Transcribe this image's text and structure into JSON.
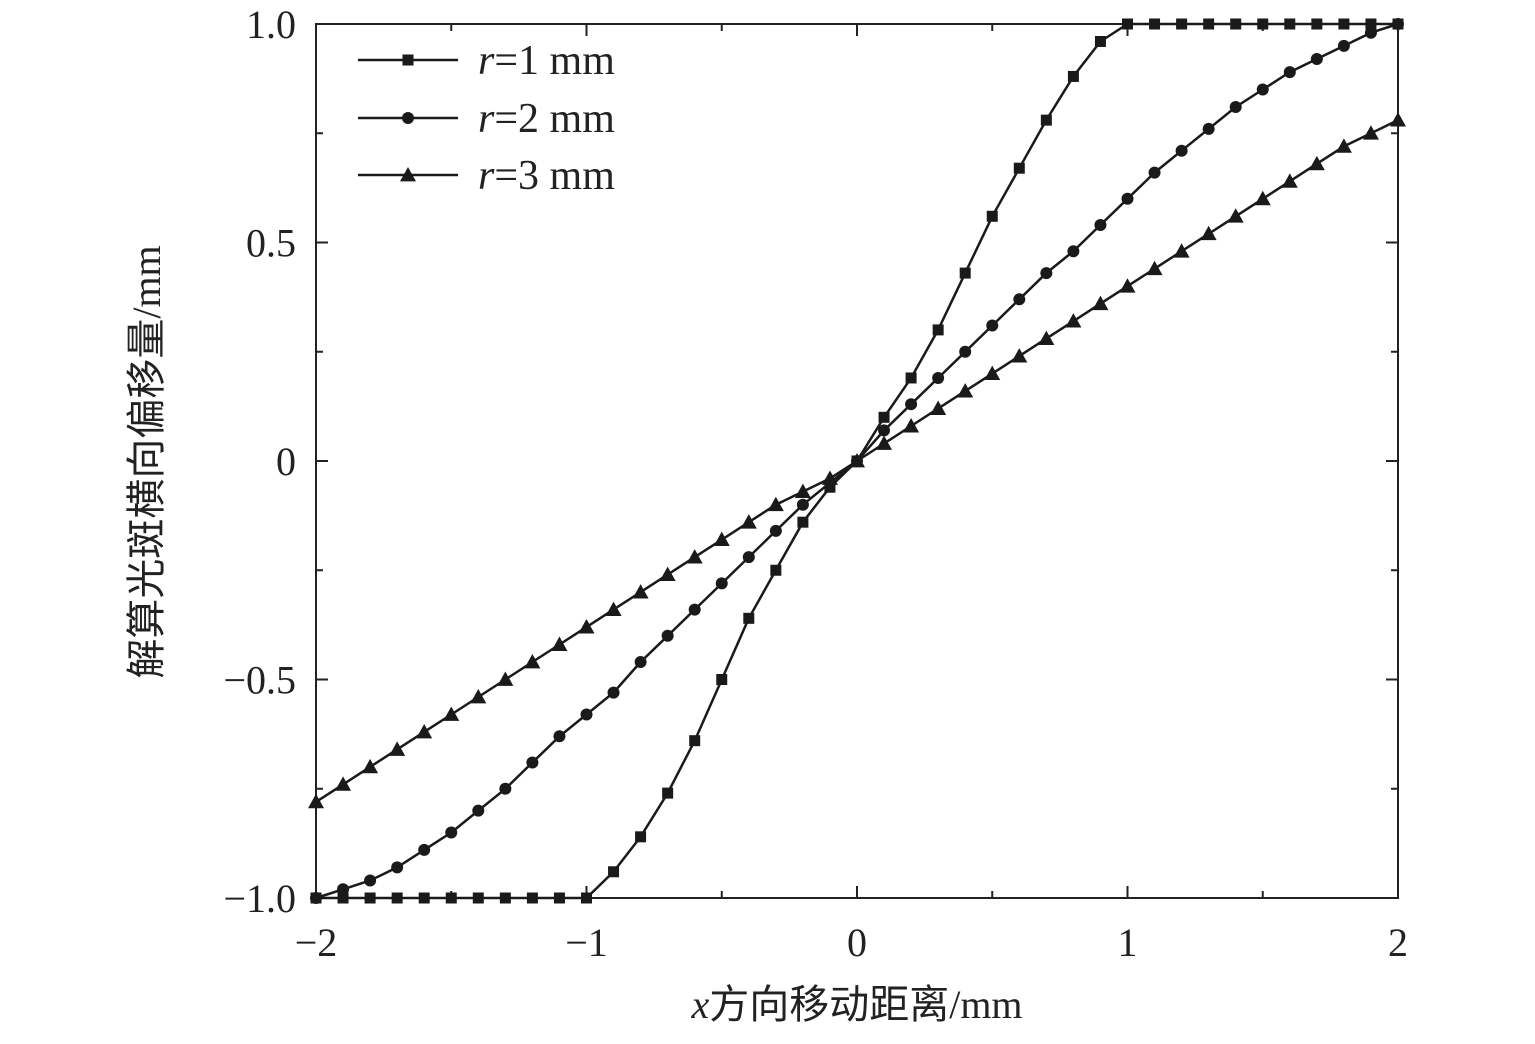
{
  "chart_data": {
    "type": "line",
    "xlabel_var": "x",
    "xlabel_rest": "方向移动距离/mm",
    "ylabel": "解算光斑横向偏移量/mm",
    "xlim": [
      -2,
      2
    ],
    "ylim": [
      -1.0,
      1.0
    ],
    "x_ticks": [
      -2,
      -1,
      0,
      1,
      2
    ],
    "x_tick_labels": [
      "−2",
      "−1",
      "0",
      "1",
      "2"
    ],
    "y_ticks": [
      -1.0,
      -0.5,
      0,
      0.5,
      1.0
    ],
    "y_tick_labels": [
      "−1.0",
      "−0.5",
      "0",
      "0.5",
      "1.0"
    ],
    "grid": false,
    "legend_position": "top-left",
    "series": [
      {
        "name": "r=1 mm",
        "name_var": "r",
        "name_rest": "=1 mm",
        "marker": "square",
        "x": [
          -2.0,
          -1.9,
          -1.8,
          -1.7,
          -1.6,
          -1.5,
          -1.4,
          -1.3,
          -1.2,
          -1.1,
          -1.0,
          -0.9,
          -0.8,
          -0.7,
          -0.6,
          -0.5,
          -0.4,
          -0.3,
          -0.2,
          -0.1,
          0.0,
          0.1,
          0.2,
          0.3,
          0.4,
          0.5,
          0.6,
          0.7,
          0.8,
          0.9,
          1.0,
          1.1,
          1.2,
          1.3,
          1.4,
          1.5,
          1.6,
          1.7,
          1.8,
          1.9,
          2.0
        ],
        "values": [
          -1.0,
          -1.0,
          -1.0,
          -1.0,
          -1.0,
          -1.0,
          -1.0,
          -1.0,
          -1.0,
          -1.0,
          -1.0,
          -0.94,
          -0.86,
          -0.76,
          -0.64,
          -0.5,
          -0.36,
          -0.25,
          -0.14,
          -0.06,
          0.0,
          0.1,
          0.19,
          0.3,
          0.43,
          0.56,
          0.67,
          0.78,
          0.88,
          0.96,
          1.0,
          1.0,
          1.0,
          1.0,
          1.0,
          1.0,
          1.0,
          1.0,
          1.0,
          1.0,
          1.0
        ]
      },
      {
        "name": "r=2 mm",
        "name_var": "r",
        "name_rest": "=2 mm",
        "marker": "circle",
        "x": [
          -2.0,
          -1.9,
          -1.8,
          -1.7,
          -1.6,
          -1.5,
          -1.4,
          -1.3,
          -1.2,
          -1.1,
          -1.0,
          -0.9,
          -0.8,
          -0.7,
          -0.6,
          -0.5,
          -0.4,
          -0.3,
          -0.2,
          -0.1,
          0.0,
          0.1,
          0.2,
          0.3,
          0.4,
          0.5,
          0.6,
          0.7,
          0.8,
          0.9,
          1.0,
          1.1,
          1.2,
          1.3,
          1.4,
          1.5,
          1.6,
          1.7,
          1.8,
          1.9,
          2.0
        ],
        "values": [
          -1.0,
          -0.98,
          -0.96,
          -0.93,
          -0.89,
          -0.85,
          -0.8,
          -0.75,
          -0.69,
          -0.63,
          -0.58,
          -0.53,
          -0.46,
          -0.4,
          -0.34,
          -0.28,
          -0.22,
          -0.16,
          -0.1,
          -0.05,
          0.0,
          0.07,
          0.13,
          0.19,
          0.25,
          0.31,
          0.37,
          0.43,
          0.48,
          0.54,
          0.6,
          0.66,
          0.71,
          0.76,
          0.81,
          0.85,
          0.89,
          0.92,
          0.95,
          0.98,
          1.0
        ]
      },
      {
        "name": "r=3 mm",
        "name_var": "r",
        "name_rest": "=3 mm",
        "marker": "triangle",
        "x": [
          -2.0,
          -1.9,
          -1.8,
          -1.7,
          -1.6,
          -1.5,
          -1.4,
          -1.3,
          -1.2,
          -1.1,
          -1.0,
          -0.9,
          -0.8,
          -0.7,
          -0.6,
          -0.5,
          -0.4,
          -0.3,
          -0.2,
          -0.1,
          0.0,
          0.1,
          0.2,
          0.3,
          0.4,
          0.5,
          0.6,
          0.7,
          0.8,
          0.9,
          1.0,
          1.1,
          1.2,
          1.3,
          1.4,
          1.5,
          1.6,
          1.7,
          1.8,
          1.9,
          2.0
        ],
        "values": [
          -0.78,
          -0.74,
          -0.7,
          -0.66,
          -0.62,
          -0.58,
          -0.54,
          -0.5,
          -0.46,
          -0.42,
          -0.38,
          -0.34,
          -0.3,
          -0.26,
          -0.22,
          -0.18,
          -0.14,
          -0.1,
          -0.07,
          -0.04,
          0.0,
          0.04,
          0.08,
          0.12,
          0.16,
          0.2,
          0.24,
          0.28,
          0.32,
          0.36,
          0.4,
          0.44,
          0.48,
          0.52,
          0.56,
          0.6,
          0.64,
          0.68,
          0.72,
          0.75,
          0.78
        ]
      }
    ],
    "colors": {
      "line": "#1a1a1a",
      "axis": "#222222"
    }
  }
}
